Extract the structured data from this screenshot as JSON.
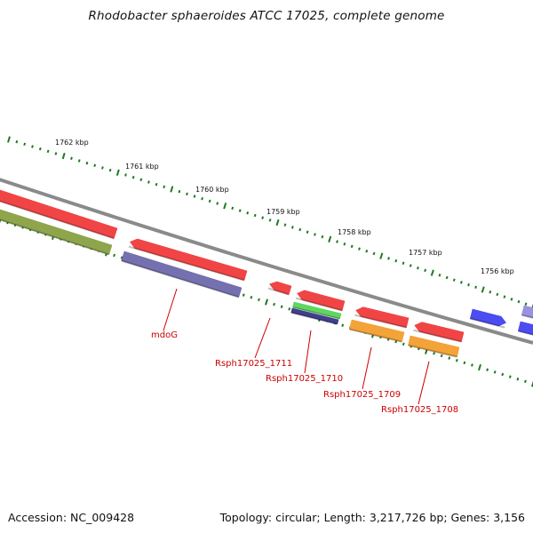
{
  "title": "Rhodobacter sphaeroides ATCC 17025, complete genome",
  "footer": {
    "accession_label": "Accession: NC_009428",
    "summary_label": "Topology: circular; Length: 3,217,726 bp; Genes: 3,156"
  },
  "colors": {
    "backbone": "#8a8a8a",
    "tick": "#1e7a1e",
    "label": "#cc0000",
    "red": "#ee1111",
    "olive": "#6f8c1a",
    "slate": "#4f4a9a",
    "green": "#33cc33",
    "navy": "#0b0b70",
    "orange": "#f08a00",
    "blue": "#1a1aee",
    "lavender": "#7d74d8"
  },
  "ruler": {
    "ticks": [
      {
        "label": "1762 kbp"
      },
      {
        "label": "1761 kbp"
      },
      {
        "label": "1760 kbp"
      },
      {
        "label": "1759 kbp"
      },
      {
        "label": "1758 kbp"
      },
      {
        "label": "1757 kbp"
      },
      {
        "label": "1756 kbp"
      }
    ]
  },
  "genes": [
    {
      "name": "mdoG",
      "label": "mdoG"
    },
    {
      "name": "Rsph17025_1711",
      "label": "Rsph17025_1711"
    },
    {
      "name": "Rsph17025_1710",
      "label": "Rsph17025_1710"
    },
    {
      "name": "Rsph17025_1709",
      "label": "Rsph17025_1709"
    },
    {
      "name": "Rsph17025_1708",
      "label": "Rsph17025_1708"
    }
  ]
}
